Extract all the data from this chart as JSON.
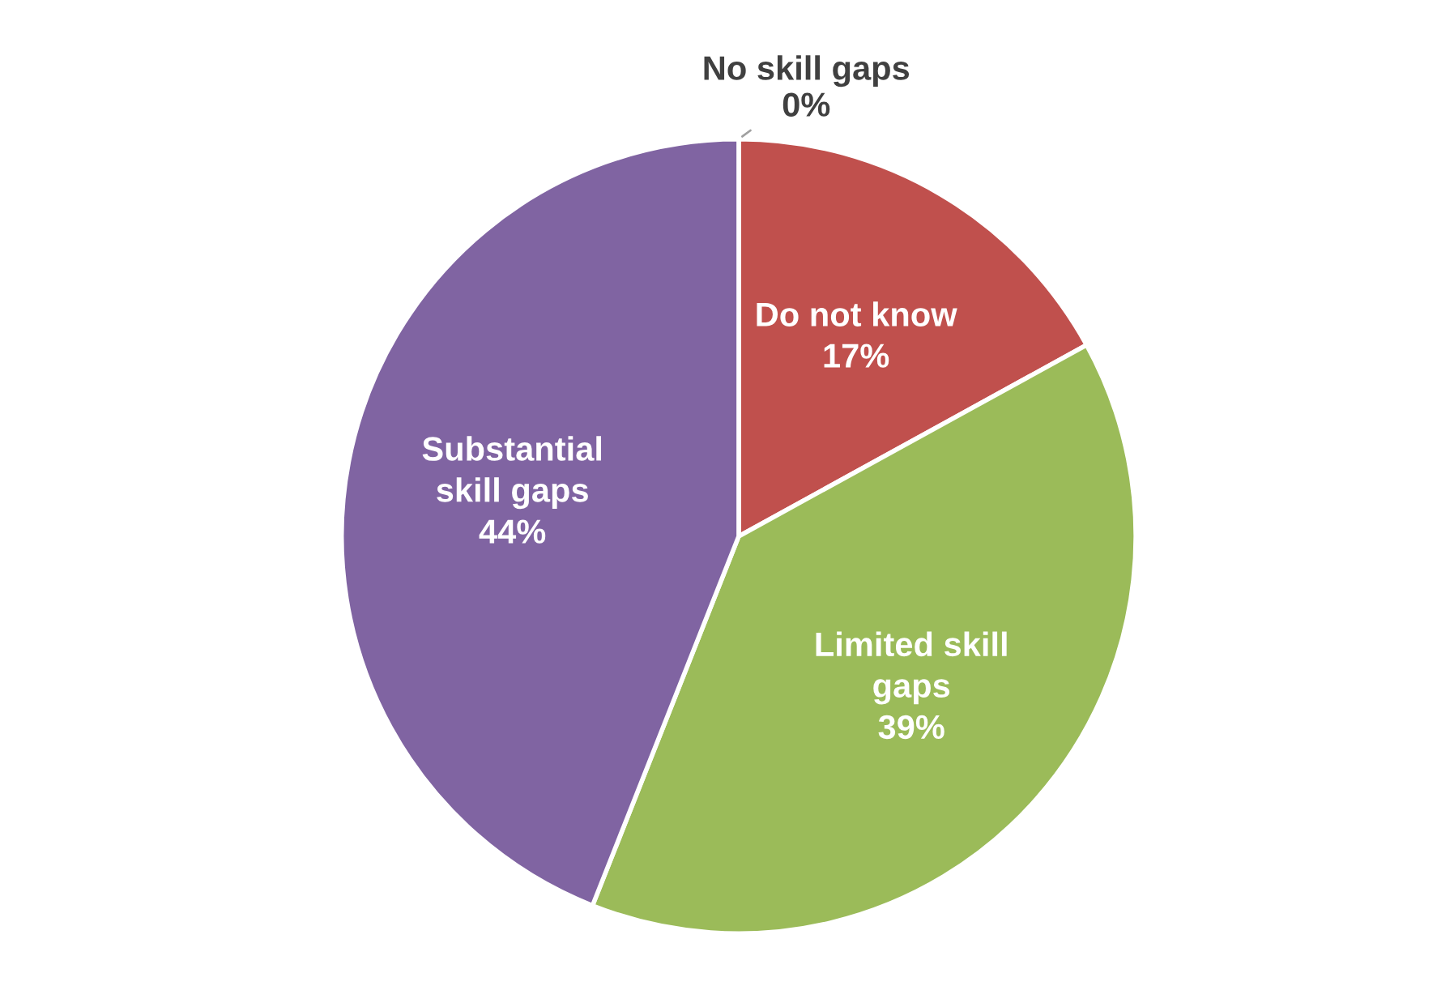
{
  "chart_data": {
    "type": "pie",
    "categories": [
      "No skill gaps",
      "Do not know",
      "Limited skill\ngaps",
      "Substantial\nskill gaps"
    ],
    "values": [
      0,
      17,
      39,
      44
    ],
    "colors": [
      "#4f81bd",
      "#c0504d",
      "#9bbb59",
      "#8064a2"
    ],
    "value_labels": [
      "0%",
      "17%",
      "39%",
      "44%"
    ],
    "legend": false
  }
}
